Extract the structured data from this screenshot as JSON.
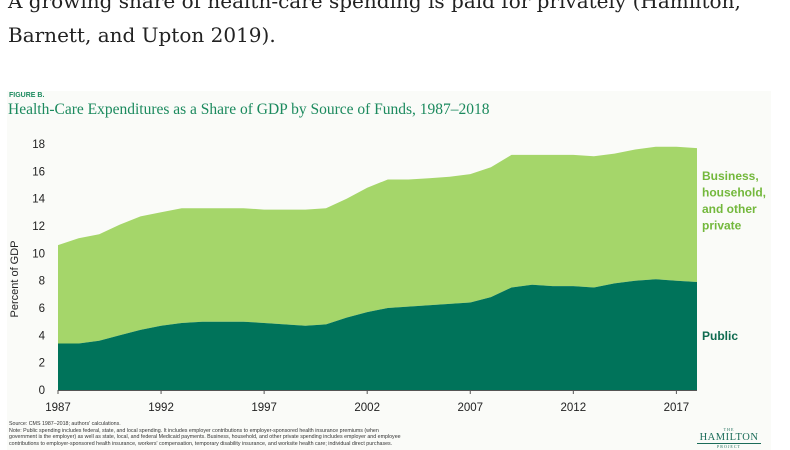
{
  "article": {
    "text": "A growing share of health-care spending is paid for privately (Hamilton, Barnett, and Upton 2019)."
  },
  "figure": {
    "label": "FIGURE B.",
    "title": "Health-Care Expenditures as a Share of GDP by Source of Funds, 1987–2018",
    "source": "Source: CMS 1987–2018; authors' calculations.",
    "note_lines": [
      "Note: Public spending includes federal, state, and local spending. It includes employer contributions to employer-sponsored health insurance premiums (when",
      "government is the employer) as well as state, local, and federal Medicaid payments. Business, household, and other private spending includes employer and employee",
      "contributions to employer-sponsored health insurance, workers' compensation, temporary disability insurance, and worksite health care; individual direct purchases."
    ],
    "logo": {
      "top": "THE",
      "name": "HAMILTON",
      "bottom": "PROJECT"
    }
  },
  "colors": {
    "public": "#00735a",
    "private": "#a5d66a",
    "title": "#1c8a5e",
    "label_public": "#0f6b50",
    "label_private": "#73b83c"
  },
  "chart_data": {
    "type": "area",
    "stacked": true,
    "title": "Health-Care Expenditures as a Share of GDP by Source of Funds, 1987–2018",
    "ylabel": "Percent of GDP",
    "xlabel": "",
    "ylim": [
      0,
      18
    ],
    "xlim": [
      1987,
      2018
    ],
    "yticks": [
      0,
      2,
      4,
      6,
      8,
      10,
      12,
      14,
      16,
      18
    ],
    "xticks": [
      1987,
      1992,
      1997,
      2002,
      2007,
      2012,
      2017
    ],
    "grid": false,
    "legend": "direct labels on right",
    "x": [
      1987,
      1988,
      1989,
      1990,
      1991,
      1992,
      1993,
      1994,
      1995,
      1996,
      1997,
      1998,
      1999,
      2000,
      2001,
      2002,
      2003,
      2004,
      2005,
      2006,
      2007,
      2008,
      2009,
      2010,
      2011,
      2012,
      2013,
      2014,
      2015,
      2016,
      2017,
      2018
    ],
    "series": [
      {
        "name": "Public",
        "values": [
          3.4,
          3.4,
          3.6,
          4.0,
          4.4,
          4.7,
          4.9,
          5.0,
          5.0,
          5.0,
          4.9,
          4.8,
          4.7,
          4.8,
          5.3,
          5.7,
          6.0,
          6.1,
          6.2,
          6.3,
          6.4,
          6.8,
          7.5,
          7.7,
          7.6,
          7.6,
          7.5,
          7.8,
          8.0,
          8.1,
          8.0,
          7.9
        ]
      },
      {
        "name": "Business, household, and other private",
        "values": [
          7.2,
          7.7,
          7.8,
          8.1,
          8.3,
          8.3,
          8.4,
          8.3,
          8.3,
          8.3,
          8.3,
          8.4,
          8.5,
          8.5,
          8.7,
          9.1,
          9.4,
          9.3,
          9.3,
          9.3,
          9.4,
          9.5,
          9.7,
          9.5,
          9.6,
          9.6,
          9.6,
          9.5,
          9.6,
          9.7,
          9.8,
          9.8
        ]
      }
    ],
    "series_labels": {
      "public": "Public",
      "private_lines": [
        "Business,",
        "household,",
        "and other",
        "private"
      ]
    }
  }
}
